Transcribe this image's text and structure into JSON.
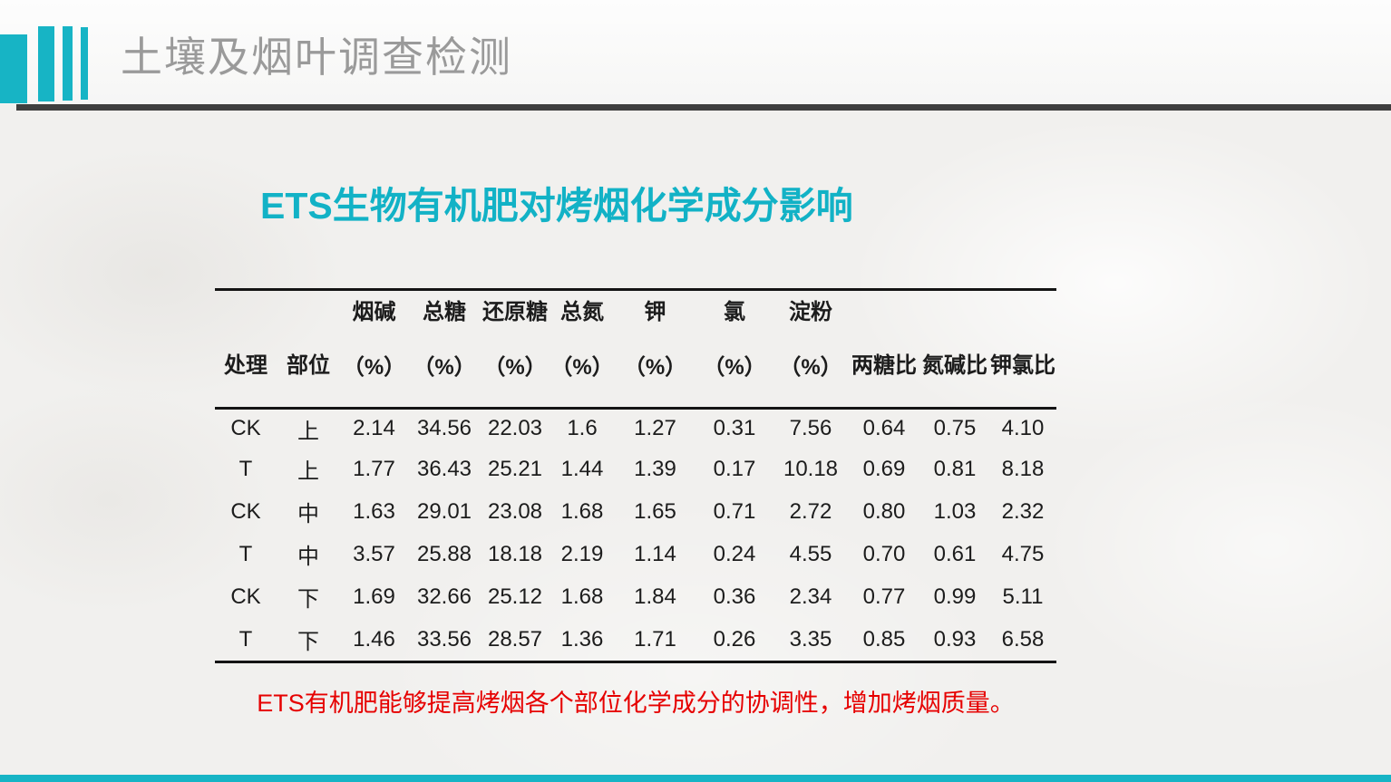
{
  "page": {
    "bg_color": "#f1f0ee",
    "accent_color": "#17b4c5"
  },
  "header": {
    "title": "土壤及烟叶调查检测",
    "title_color": "#9a9a9a",
    "underline_color": "#3f3f3f"
  },
  "content": {
    "title": "ETS生物有机肥对烤烟化学成分影响",
    "title_color": "#12b2c6",
    "note": "ETS有机肥能够提高烤烟各个部位化学成分的协调性，增加烤烟质量。",
    "note_color": "#e60000"
  },
  "chart_data": {
    "type": "table",
    "title": "ETS生物有机肥对烤烟化学成分影响",
    "columns": [
      {
        "line1": "处理",
        "line2": ""
      },
      {
        "line1": "部位",
        "line2": ""
      },
      {
        "line1": "烟碱",
        "line2": "（%）"
      },
      {
        "line1": "总糖",
        "line2": "（%）"
      },
      {
        "line1": "还原糖",
        "line2": "（%）"
      },
      {
        "line1": "总氮",
        "line2": "（%）"
      },
      {
        "line1": "钾",
        "line2": "（%）"
      },
      {
        "line1": "氯",
        "line2": "（%）"
      },
      {
        "line1": "淀粉",
        "line2": "（%）"
      },
      {
        "line1": "两糖比",
        "line2": ""
      },
      {
        "line1": "氮碱比",
        "line2": ""
      },
      {
        "line1": "钾氯比",
        "line2": ""
      }
    ],
    "rows": [
      [
        "CK",
        "上",
        "2.14",
        "34.56",
        "22.03",
        "1.6",
        "1.27",
        "0.31",
        "7.56",
        "0.64",
        "0.75",
        "4.10"
      ],
      [
        "T",
        "上",
        "1.77",
        "36.43",
        "25.21",
        "1.44",
        "1.39",
        "0.17",
        "10.18",
        "0.69",
        "0.81",
        "8.18"
      ],
      [
        "CK",
        "中",
        "1.63",
        "29.01",
        "23.08",
        "1.68",
        "1.65",
        "0.71",
        "2.72",
        "0.80",
        "1.03",
        "2.32"
      ],
      [
        "T",
        "中",
        "3.57",
        "25.88",
        "18.18",
        "2.19",
        "1.14",
        "0.24",
        "4.55",
        "0.70",
        "0.61",
        "4.75"
      ],
      [
        "CK",
        "下",
        "1.69",
        "32.66",
        "25.12",
        "1.68",
        "1.84",
        "0.36",
        "2.34",
        "0.77",
        "0.99",
        "5.11"
      ],
      [
        "T",
        "下",
        "1.46",
        "33.56",
        "28.57",
        "1.36",
        "1.71",
        "0.26",
        "3.35",
        "0.85",
        "0.93",
        "6.58"
      ]
    ]
  }
}
